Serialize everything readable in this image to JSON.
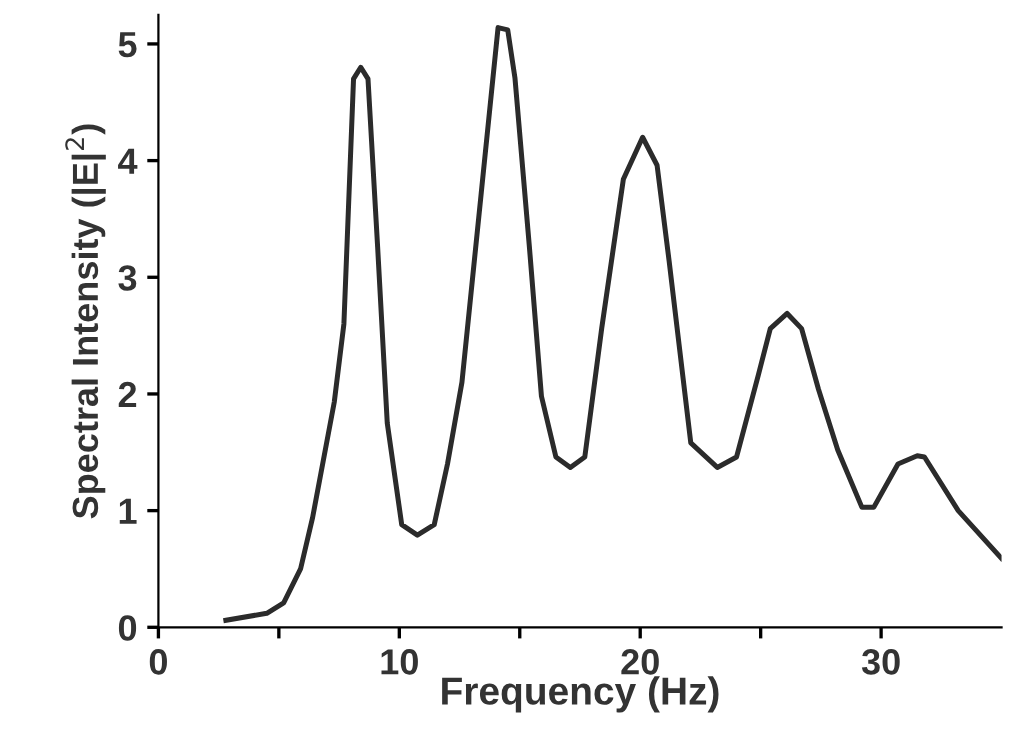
{
  "chart_data": {
    "type": "line",
    "xlabel": "Frequency (Hz)",
    "ylabel": "Spectral Intensity (|E|$^{2}$)",
    "x": [
      2.8,
      4.5,
      5.2,
      5.9,
      6.4,
      7.3,
      7.7,
      8.1,
      8.4,
      8.7,
      9.1,
      9.5,
      10.1,
      10.75,
      11.45,
      12.0,
      12.6,
      13.4,
      14.1,
      14.5,
      14.8,
      15.4,
      15.9,
      16.5,
      17.1,
      17.7,
      18.4,
      19.3,
      20.1,
      20.7,
      21.2,
      22.1,
      23.2,
      24.0,
      24.9,
      25.4,
      26.1,
      26.7,
      27.4,
      28.2,
      29.2,
      29.7,
      30.7,
      31.5,
      31.8,
      33.2,
      35.0
    ],
    "series": [
      {
        "color": "#2b2b2b",
        "values": [
          0.06,
          0.12,
          0.21,
          0.5,
          0.94,
          1.93,
          2.6,
          4.7,
          4.8,
          4.7,
          3.26,
          1.75,
          0.88,
          0.79,
          0.88,
          1.4,
          2.1,
          3.72,
          5.14,
          5.12,
          4.71,
          3.26,
          1.98,
          1.46,
          1.37,
          1.46,
          2.56,
          3.84,
          4.2,
          3.96,
          3.14,
          1.58,
          1.37,
          1.46,
          2.16,
          2.56,
          2.69,
          2.56,
          2.04,
          1.52,
          1.03,
          1.03,
          1.4,
          1.47,
          1.46,
          1.0,
          0.59
        ]
      }
    ],
    "xlim": [
      0,
      35
    ],
    "xticks": [
      0,
      {
        "value": 5,
        "label": null
      },
      10,
      {
        "value": 15,
        "label": null
      },
      20,
      {
        "value": 25,
        "label": null
      },
      30
    ],
    "ylim": [
      0,
      5.25
    ],
    "yticks": [
      0,
      1,
      2,
      3,
      4,
      5
    ],
    "grid": false,
    "legend": false,
    "marker": "none",
    "line_style": "solid"
  }
}
